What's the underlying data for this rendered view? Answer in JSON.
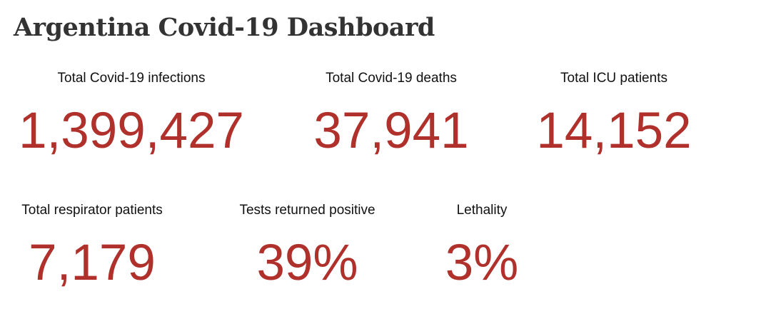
{
  "page": {
    "title": "Argentina Covid-19 Dashboard"
  },
  "stats": [
    {
      "label": "Total Covid-19 infections",
      "value": "1,399,427"
    },
    {
      "label": "Total Covid-19 deaths",
      "value": "37,941"
    },
    {
      "label": "Total ICU patients",
      "value": "14,152"
    },
    {
      "label": "Total respirator patients",
      "value": "7,179"
    },
    {
      "label": "Tests returned positive",
      "value": "39%"
    },
    {
      "label": "Lethality",
      "value": "3%"
    }
  ],
  "colors": {
    "value_color": "#b0312b",
    "title_color": "#333333",
    "label_color": "#111111"
  }
}
